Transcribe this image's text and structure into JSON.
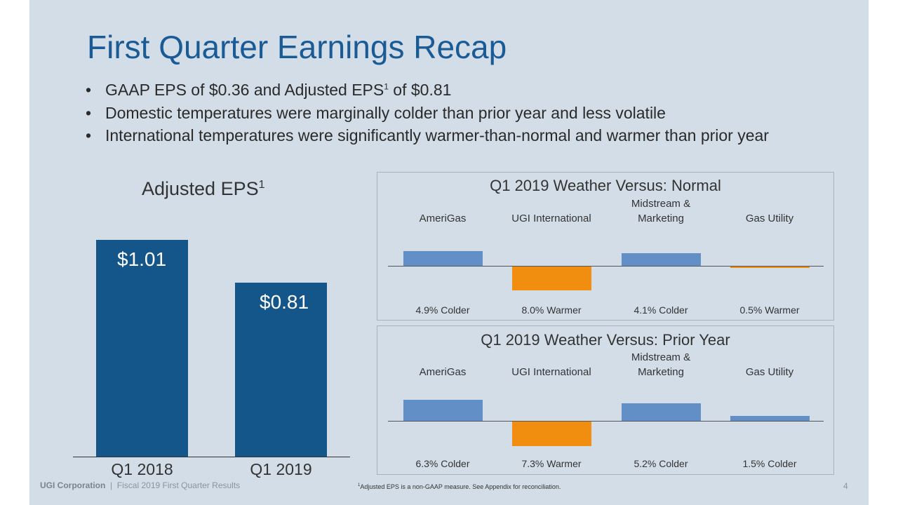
{
  "title": "First Quarter Earnings Recap",
  "bullets": [
    {
      "pre": "GAAP EPS of $0.36 and Adjusted EPS",
      "sup": "1",
      "post": " of $0.81"
    },
    {
      "pre": "Domestic temperatures were marginally colder than prior year and less volatile"
    },
    {
      "pre": "International temperatures were significantly warmer-than-normal and warmer than prior year"
    }
  ],
  "colors": {
    "title": "#1a5b96",
    "eps_bar": "#14558a",
    "colder": "#628fc5",
    "warmer": "#f28e0f",
    "background": "#d3dde7"
  },
  "chart_data": [
    {
      "type": "bar",
      "title": "Adjusted EPS",
      "title_sup": "1",
      "categories": [
        "Q1 2018",
        "Q1 2019"
      ],
      "values": [
        1.01,
        0.81
      ],
      "data_labels": [
        "$1.01",
        "$0.81"
      ],
      "ylim": [
        0,
        1.01
      ]
    },
    {
      "type": "bar",
      "title": "Q1 2019 Weather Versus: Normal",
      "categories": [
        "AmeriGas",
        "UGI International",
        "Midstream & Marketing",
        "Gas Utility"
      ],
      "category_lines": [
        [
          "AmeriGas"
        ],
        [
          "UGI International"
        ],
        [
          "Midstream &",
          "Marketing"
        ],
        [
          "Gas Utility"
        ]
      ],
      "values": [
        4.9,
        -8.0,
        4.1,
        -0.5
      ],
      "data_labels": [
        "4.9% Colder",
        "8.0% Warmer",
        "4.1% Colder",
        "0.5% Warmer"
      ],
      "unit": "% colder (+) / warmer (-)"
    },
    {
      "type": "bar",
      "title": "Q1 2019 Weather Versus: Prior Year",
      "categories": [
        "AmeriGas",
        "UGI International",
        "Midstream & Marketing",
        "Gas Utility"
      ],
      "category_lines": [
        [
          "AmeriGas"
        ],
        [
          "UGI International"
        ],
        [
          "Midstream &",
          "Marketing"
        ],
        [
          "Gas Utility"
        ]
      ],
      "values": [
        6.3,
        -7.3,
        5.2,
        1.5
      ],
      "data_labels": [
        "6.3% Colder",
        "7.3% Warmer",
        "5.2% Colder",
        "1.5% Colder"
      ],
      "unit": "% colder (+) / warmer (-)"
    }
  ],
  "footer": {
    "company": "UGI Corporation",
    "separator": "|",
    "subtitle": "Fiscal 2019 First Quarter Results",
    "page": "4"
  },
  "footnote": {
    "sup": "1",
    "text": "Adjusted EPS is a non-GAAP measure. See Appendix for reconciliation."
  }
}
